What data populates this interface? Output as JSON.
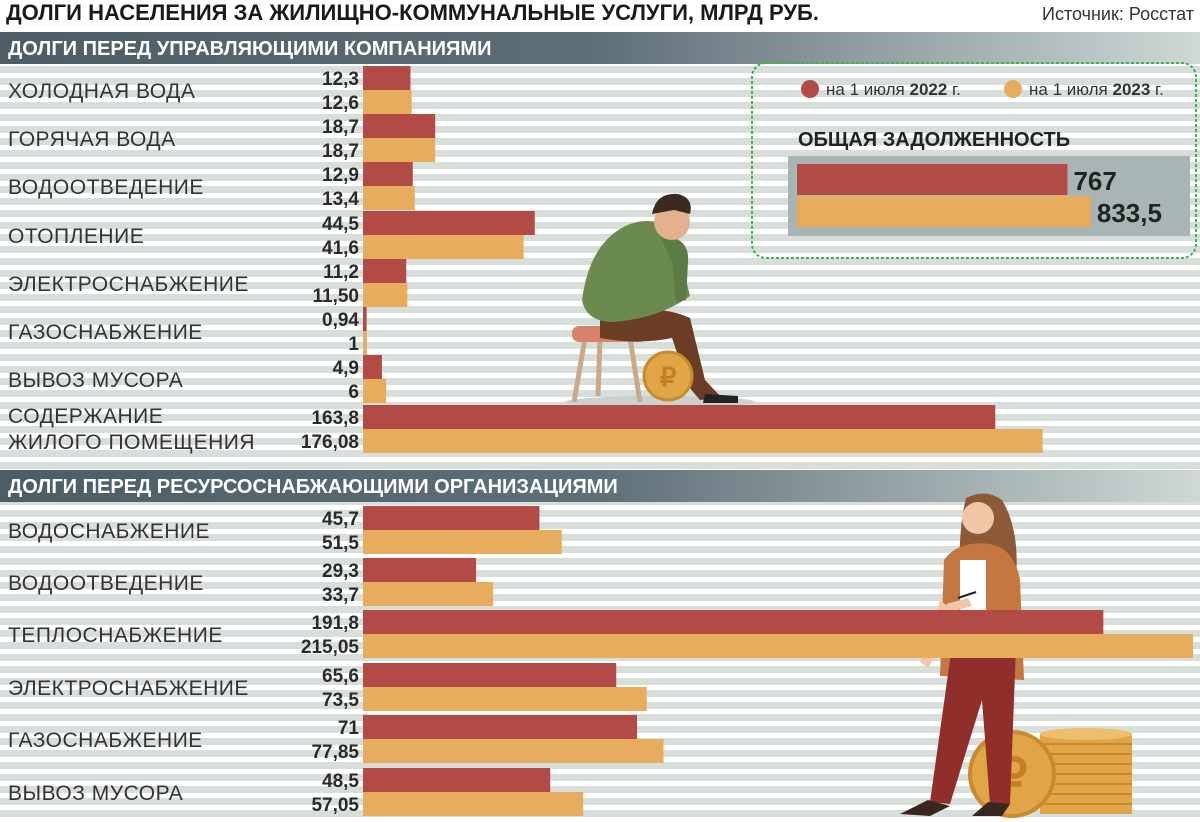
{
  "header": {
    "title": "ДОЛГИ НАСЕЛЕНИЯ ЗА ЖИЛИЩНО-КОММУНАЛЬНЫЕ УСЛУГИ,",
    "unit": "МЛРД РУБ.",
    "source": "Источник: Росстат"
  },
  "legend": {
    "prefix": "на 1 июля",
    "suffix": "г.",
    "items": [
      {
        "year": "2022",
        "color": "#b24a46"
      },
      {
        "year": "2023",
        "color": "#e8ac5e"
      }
    ]
  },
  "total": {
    "title": "ОБЩАЯ ЗАДОЛЖЕННОСТЬ",
    "values": [
      767,
      833.5
    ],
    "labels": [
      "767",
      "833,5"
    ]
  },
  "colors": {
    "series_2022": "#b24a46",
    "series_2023": "#e8ac5e",
    "section_band": "#4d5d66",
    "stripe": "#d8dfdb",
    "highlight_box": "#3cb54a"
  },
  "illustrations": [
    "man-on-stool-with-ruble-coin",
    "woman-with-pen",
    "ruble-coin-stack"
  ],
  "chart_data": {
    "type": "bar",
    "orientation": "horizontal",
    "series": [
      {
        "name": "на 1 июля 2022 г."
      },
      {
        "name": "на 1 июля 2023 г."
      }
    ],
    "sections": [
      {
        "title": "ДОЛГИ ПЕРЕД УПРАВЛЯЮЩИМИ КОМПАНИЯМИ",
        "categories": [
          {
            "lines": [
              "ХОЛОДНАЯ ВОДА"
            ],
            "values": [
              12.3,
              12.6
            ],
            "labels": [
              "12,3",
              "12,6"
            ]
          },
          {
            "lines": [
              "ГОРЯЧАЯ ВОДА"
            ],
            "values": [
              18.7,
              18.7
            ],
            "labels": [
              "18,7",
              "18,7"
            ]
          },
          {
            "lines": [
              "ВОДООТВЕДЕНИЕ"
            ],
            "values": [
              12.9,
              13.4
            ],
            "labels": [
              "12,9",
              "13,4"
            ]
          },
          {
            "lines": [
              "ОТОПЛЕНИЕ"
            ],
            "values": [
              44.5,
              41.6
            ],
            "labels": [
              "44,5",
              "41,6"
            ]
          },
          {
            "lines": [
              "ЭЛЕКТРОСНАБЖЕНИЕ"
            ],
            "values": [
              11.2,
              11.5
            ],
            "labels": [
              "11,2",
              "11,50"
            ]
          },
          {
            "lines": [
              "ГАЗОСНАБЖЕНИЕ"
            ],
            "values": [
              0.94,
              1
            ],
            "labels": [
              "0,94",
              "1"
            ]
          },
          {
            "lines": [
              "ВЫВОЗ МУСОРА"
            ],
            "values": [
              4.9,
              6
            ],
            "labels": [
              "4,9",
              "6"
            ]
          },
          {
            "lines": [
              "СОДЕРЖАНИЕ",
              "ЖИЛОГО ПОМЕЩЕНИЯ"
            ],
            "values": [
              163.8,
              176.08
            ],
            "labels": [
              "163,8",
              "176,08"
            ]
          }
        ]
      },
      {
        "title": "ДОЛГИ ПЕРЕД РЕСУРСОСНАБЖАЮЩИМИ ОРГАНИЗАЦИЯМИ",
        "categories": [
          {
            "lines": [
              "ВОДОСНАБЖЕНИЕ"
            ],
            "values": [
              45.7,
              51.5
            ],
            "labels": [
              "45,7",
              "51,5"
            ]
          },
          {
            "lines": [
              "ВОДООТВЕДЕНИЕ"
            ],
            "values": [
              29.3,
              33.7
            ],
            "labels": [
              "29,3",
              "33,7"
            ]
          },
          {
            "lines": [
              "ТЕПЛОСНАБЖЕНИЕ"
            ],
            "values": [
              191.8,
              215.05
            ],
            "labels": [
              "191,8",
              "215,05"
            ]
          },
          {
            "lines": [
              "ЭЛЕКТРОСНАБЖЕНИЕ"
            ],
            "values": [
              65.6,
              73.5
            ],
            "labels": [
              "65,6",
              "73,5"
            ]
          },
          {
            "lines": [
              "ГАЗОСНАБЖЕНИЕ"
            ],
            "values": [
              71,
              77.85
            ],
            "labels": [
              "71",
              "77,85"
            ]
          },
          {
            "lines": [
              "ВЫВОЗ МУСОРА"
            ],
            "values": [
              48.5,
              57.05
            ],
            "labels": [
              "48,5",
              "57,05"
            ]
          }
        ]
      }
    ]
  }
}
